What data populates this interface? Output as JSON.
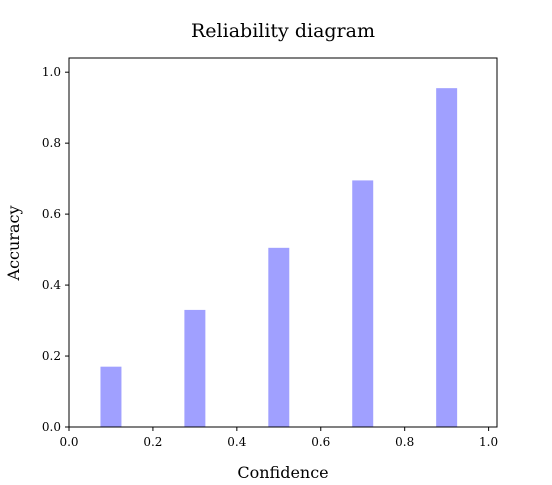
{
  "chart_data": {
    "type": "bar",
    "title": "Reliability diagram",
    "xlabel": "Confidence",
    "ylabel": "Accuracy",
    "x": [
      0.1,
      0.3,
      0.5,
      0.7,
      0.9
    ],
    "values": [
      0.17,
      0.33,
      0.505,
      0.695,
      0.955
    ],
    "bar_width": 0.05,
    "xlim": [
      0.0,
      1.02
    ],
    "ylim": [
      0.0,
      1.04
    ],
    "xticks": [
      "0.0",
      "0.2",
      "0.4",
      "0.6",
      "0.8",
      "1.0"
    ],
    "yticks": [
      "0.0",
      "0.2",
      "0.4",
      "0.6",
      "0.8",
      "1.0"
    ],
    "bar_color": "#a0a0ff",
    "grid": false,
    "legend": "none"
  }
}
